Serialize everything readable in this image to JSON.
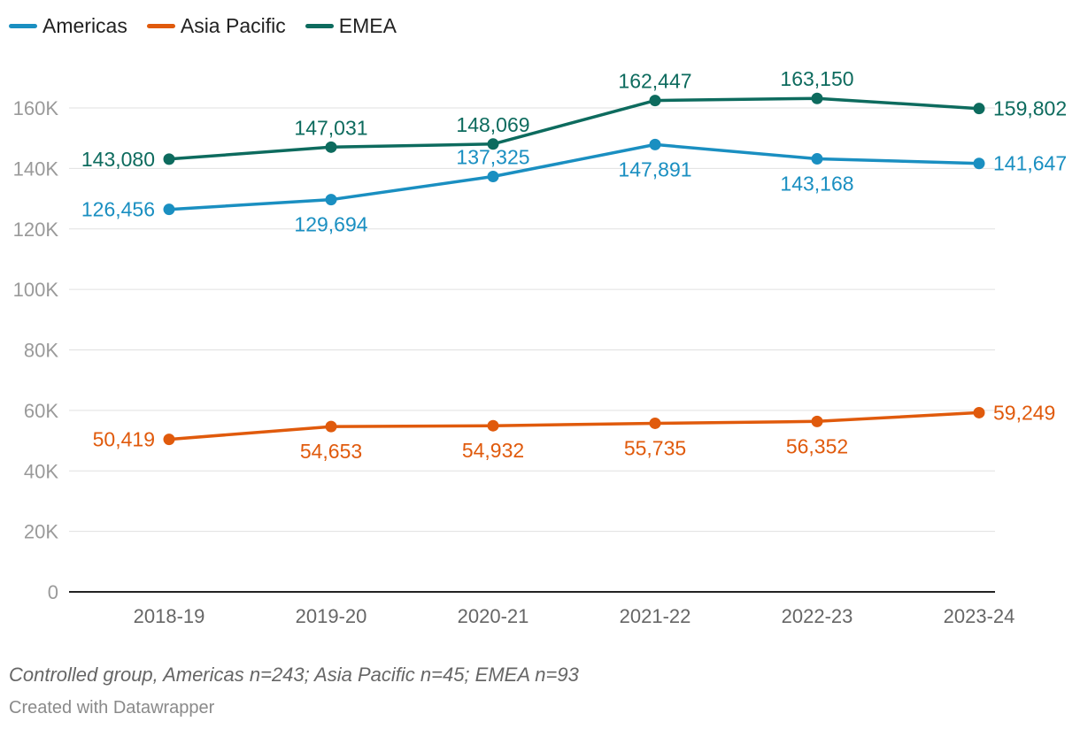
{
  "chart_data": {
    "type": "line",
    "x": [
      "2018-19",
      "2019-20",
      "2020-21",
      "2021-22",
      "2022-23",
      "2023-24"
    ],
    "series": [
      {
        "name": "Americas",
        "color": "#1a8fc1",
        "values": [
          126456,
          129694,
          137325,
          147891,
          143168,
          141647
        ],
        "labels": [
          "126,456",
          "129,694",
          "137,325",
          "147,891",
          "143,168",
          "141,647"
        ]
      },
      {
        "name": "Asia Pacific",
        "color": "#e05a0c",
        "values": [
          50419,
          54653,
          54932,
          55735,
          56352,
          59249
        ],
        "labels": [
          "50,419",
          "54,653",
          "54,932",
          "55,735",
          "56,352",
          "59,249"
        ]
      },
      {
        "name": "EMEA",
        "color": "#0d6b5e",
        "values": [
          143080,
          147031,
          148069,
          162447,
          163150,
          159802
        ],
        "labels": [
          "143,080",
          "147,031",
          "148,069",
          "162,447",
          "163,150",
          "159,802"
        ]
      }
    ],
    "ylim": [
      0,
      160000
    ],
    "yticks": [
      0,
      20000,
      40000,
      60000,
      80000,
      100000,
      120000,
      140000,
      160000
    ],
    "ytick_labels": [
      "0",
      "20K",
      "40K",
      "60K",
      "80K",
      "100K",
      "120K",
      "140K",
      "160K"
    ],
    "grid": true,
    "legend": "top-left"
  },
  "footer": {
    "note": "Controlled group, Americas n=243; Asia Pacific n=45; EMEA n=93",
    "credit": "Created with Datawrapper"
  }
}
